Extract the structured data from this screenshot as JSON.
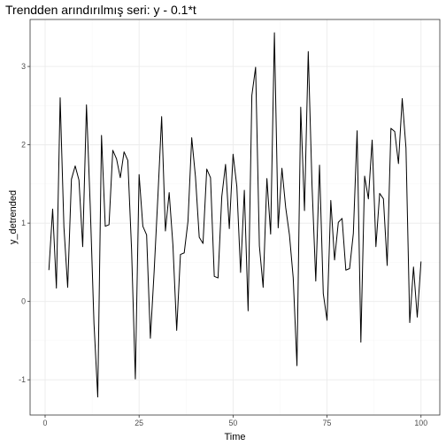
{
  "chart_data": {
    "type": "line",
    "title": "Trendden arındırılmış seri:  y - 0.1*t",
    "xlabel": "Time",
    "ylabel": "y_detrended",
    "xlim": [
      -4,
      105
    ],
    "ylim": [
      -1.45,
      3.6
    ],
    "x_ticks": [
      0,
      25,
      50,
      75,
      100
    ],
    "y_ticks": [
      -1,
      0,
      1,
      2,
      3
    ],
    "x_tick_labels": [
      "0",
      "25",
      "50",
      "75",
      "100"
    ],
    "y_tick_labels": [
      "-1",
      "0",
      "1",
      "2",
      "3"
    ],
    "grid": true,
    "line_color": "#000000",
    "x": [
      1,
      2,
      3,
      4,
      5,
      6,
      7,
      8,
      9,
      10,
      11,
      12,
      13,
      14,
      15,
      16,
      17,
      18,
      19,
      20,
      21,
      22,
      23,
      24,
      25,
      26,
      27,
      28,
      29,
      30,
      31,
      32,
      33,
      34,
      35,
      36,
      37,
      38,
      39,
      40,
      41,
      42,
      43,
      44,
      45,
      46,
      47,
      48,
      49,
      50,
      51,
      52,
      53,
      54,
      55,
      56,
      57,
      58,
      59,
      60,
      61,
      62,
      63,
      64,
      65,
      66,
      67,
      68,
      69,
      70,
      71,
      72,
      73,
      74,
      75,
      76,
      77,
      78,
      79,
      80,
      81,
      82,
      83,
      84,
      85,
      86,
      87,
      88,
      89,
      90,
      91,
      92,
      93,
      94,
      95,
      96,
      97,
      98,
      99,
      100
    ],
    "y": [
      0.4,
      1.18,
      0.17,
      2.6,
      0.95,
      0.18,
      1.56,
      1.73,
      1.55,
      0.7,
      2.51,
      1.22,
      -0.28,
      -1.22,
      2.12,
      0.96,
      0.98,
      1.93,
      1.82,
      1.58,
      1.91,
      1.8,
      0.66,
      -0.99,
      1.62,
      0.96,
      0.85,
      -0.47,
      0.38,
      1.34,
      2.36,
      0.9,
      1.39,
      0.72,
      -0.37,
      0.6,
      0.62,
      1.02,
      2.09,
      1.59,
      0.82,
      0.74,
      1.69,
      1.58,
      0.32,
      0.3,
      1.34,
      1.75,
      0.93,
      1.88,
      1.47,
      0.37,
      1.42,
      -0.12,
      2.63,
      2.99,
      0.71,
      0.18,
      1.57,
      0.86,
      3.43,
      0.94,
      1.7,
      1.2,
      0.85,
      0.3,
      -0.82,
      2.48,
      1.16,
      3.19,
      1.49,
      0.26,
      1.74,
      0.1,
      -0.24,
      1.29,
      0.53,
      1.01,
      1.06,
      0.4,
      0.42,
      0.87,
      2.18,
      -0.52,
      1.6,
      1.31,
      2.06,
      0.7,
      1.38,
      1.31,
      0.46,
      2.21,
      2.17,
      1.76,
      2.59,
      1.96,
      -0.27,
      0.44,
      -0.2,
      0.51
    ]
  }
}
